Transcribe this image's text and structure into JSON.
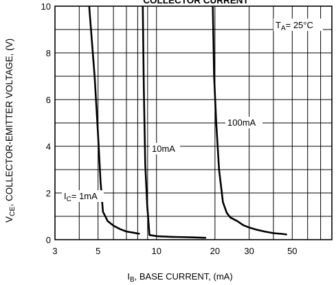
{
  "chart_data": {
    "type": "line",
    "title": "COLLECTOR CURRENT",
    "xlabel": "I_B, BASE CURRENT, (mA)",
    "ylabel": "V_CE, COLLECTOR-EMITTER VOLTAGE, (V)",
    "xscale": "log",
    "xlim": [
      3,
      80
    ],
    "ylim": [
      0,
      10
    ],
    "xticks": [
      3,
      5,
      10,
      20,
      30,
      50
    ],
    "xtick_labels": [
      "3",
      "5",
      "10",
      "20",
      "30",
      "50"
    ],
    "yticks": [
      0,
      2,
      4,
      6,
      8,
      10
    ],
    "ytick_labels": [
      "0",
      "2",
      "4",
      "6",
      "8",
      "10"
    ],
    "grid": true,
    "annotation": "T_A= 25°C",
    "series": [
      {
        "name": "I_C= 1mA",
        "points": [
          [
            4.5,
            10.0
          ],
          [
            4.8,
            7.0
          ],
          [
            5.0,
            4.5
          ],
          [
            5.15,
            2.5
          ],
          [
            5.3,
            1.2
          ],
          [
            5.6,
            0.8
          ],
          [
            6.0,
            0.6
          ],
          [
            6.5,
            0.45
          ],
          [
            7.0,
            0.35
          ],
          [
            7.6,
            0.3
          ],
          [
            8.2,
            0.25
          ]
        ]
      },
      {
        "name": "10mA",
        "points": [
          [
            8.5,
            10.0
          ],
          [
            8.6,
            6.5
          ],
          [
            8.75,
            3.2
          ],
          [
            8.95,
            1.5
          ],
          [
            9.2,
            0.2
          ],
          [
            10.0,
            0.15
          ],
          [
            12.0,
            0.12
          ],
          [
            15.0,
            0.1
          ],
          [
            18.0,
            0.08
          ]
        ]
      },
      {
        "name": "100mA",
        "points": [
          [
            19.5,
            10.0
          ],
          [
            19.8,
            7.0
          ],
          [
            20.3,
            5.0
          ],
          [
            21.0,
            3.0
          ],
          [
            22.0,
            1.6
          ],
          [
            23.0,
            1.15
          ],
          [
            24.0,
            0.95
          ],
          [
            26.0,
            0.8
          ],
          [
            28.0,
            0.62
          ],
          [
            30.0,
            0.52
          ],
          [
            33.0,
            0.42
          ],
          [
            36.0,
            0.35
          ],
          [
            40.0,
            0.28
          ],
          [
            44.0,
            0.25
          ],
          [
            47.0,
            0.22
          ]
        ]
      }
    ]
  }
}
